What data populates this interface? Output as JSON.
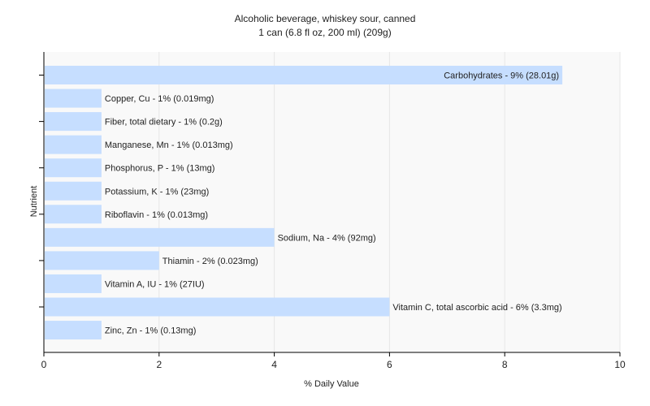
{
  "chart_data": {
    "type": "bar",
    "orientation": "horizontal",
    "title": "Alcoholic beverage, whiskey sour, canned",
    "subtitle": "1 can (6.8 fl oz, 200 ml) (209g)",
    "xlabel": "% Daily Value",
    "ylabel": "Nutrient",
    "xlim": [
      0,
      10
    ],
    "x_ticks": [
      "0",
      "2",
      "4",
      "6",
      "8",
      "10"
    ],
    "grid": true,
    "bar_color": "#c6deff",
    "categories": [
      "Carbohydrates",
      "Copper, Cu",
      "Fiber, total dietary",
      "Manganese, Mn",
      "Phosphorus, P",
      "Potassium, K",
      "Riboflavin",
      "Sodium, Na",
      "Thiamin",
      "Vitamin A, IU",
      "Vitamin C, total ascorbic acid",
      "Zinc, Zn"
    ],
    "values": [
      9,
      1,
      1,
      1,
      1,
      1,
      1,
      4,
      2,
      1,
      6,
      1
    ],
    "labels": [
      "Carbohydrates - 9% (28.01g)",
      "Copper, Cu - 1% (0.019mg)",
      "Fiber, total dietary - 1% (0.2g)",
      "Manganese, Mn - 1% (0.013mg)",
      "Phosphorus, P - 1% (13mg)",
      "Potassium, K - 1% (23mg)",
      "Riboflavin - 1% (0.013mg)",
      "Sodium, Na - 4% (92mg)",
      "Thiamin - 2% (0.023mg)",
      "Vitamin A, IU - 1% (27IU)",
      "Vitamin C, total ascorbic acid - 6% (3.3mg)",
      "Zinc, Zn - 1% (0.13mg)"
    ]
  }
}
